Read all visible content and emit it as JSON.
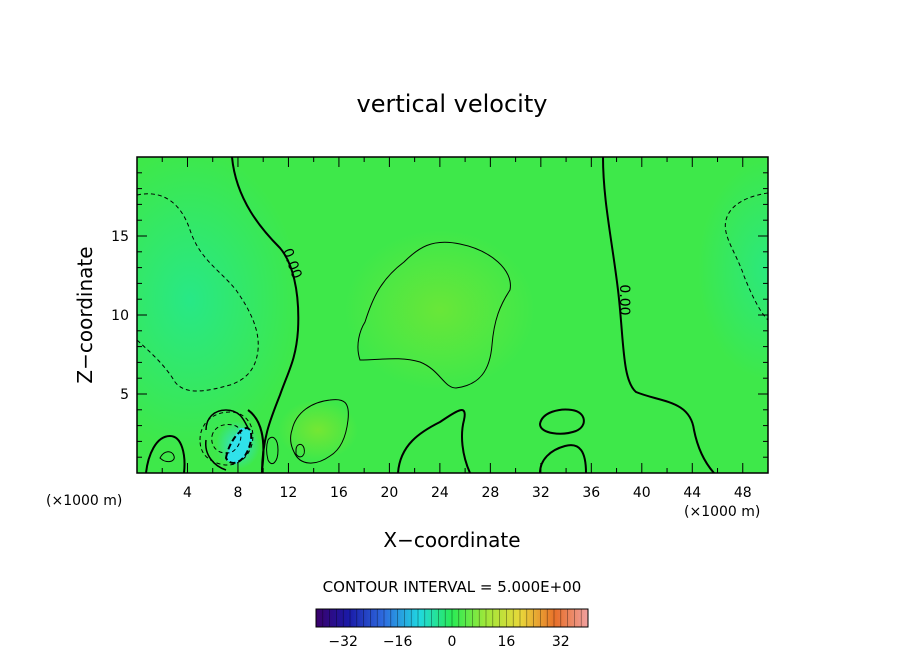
{
  "chart_data": {
    "type": "heatmap",
    "title": "vertical velocity",
    "xlabel": "X−coordinate",
    "ylabel": "Z−coordinate",
    "x_unit_left": "(×1000 m)",
    "x_unit_right": "(×1000 m)",
    "xlim": [
      0,
      50
    ],
    "ylim": [
      0,
      20
    ],
    "x_ticks": [
      4,
      8,
      12,
      16,
      20,
      24,
      28,
      32,
      36,
      40,
      44,
      48
    ],
    "y_ticks": [
      5,
      10,
      15
    ],
    "contour_interval_text": "CONTOUR INTERVAL = 5.000E+00",
    "contour_interval": 5,
    "contour_labels": [
      "0.00",
      "0.00"
    ],
    "colorbar": {
      "min": -40,
      "max": 40,
      "ticks": [
        -32,
        -16,
        0,
        16,
        32
      ],
      "tick_labels": [
        "−32",
        "−16",
        "0",
        "16",
        "32"
      ]
    },
    "features": [
      {
        "kind": "positive",
        "x": 11.0,
        "y": 1.3,
        "level": 5
      },
      {
        "kind": "positive",
        "x": 13.0,
        "y": 1.5,
        "level": 10
      },
      {
        "kind": "positive",
        "x": 14.0,
        "y": 2.8,
        "level": 5
      },
      {
        "kind": "positive",
        "x": 24.0,
        "y": 10.5,
        "level": 5
      },
      {
        "kind": "positive",
        "x": 2.0,
        "y": 1.2,
        "level": 5
      },
      {
        "kind": "negative",
        "x": 8.0,
        "y": 1.8,
        "level": -15
      },
      {
        "kind": "negative",
        "x": 7.2,
        "y": 2.5,
        "level": -5
      },
      {
        "kind": "negative",
        "x": 6.0,
        "y": 10.0,
        "level": -5
      },
      {
        "kind": "negative",
        "x": 48.0,
        "y": 13.0,
        "level": -5
      }
    ]
  }
}
